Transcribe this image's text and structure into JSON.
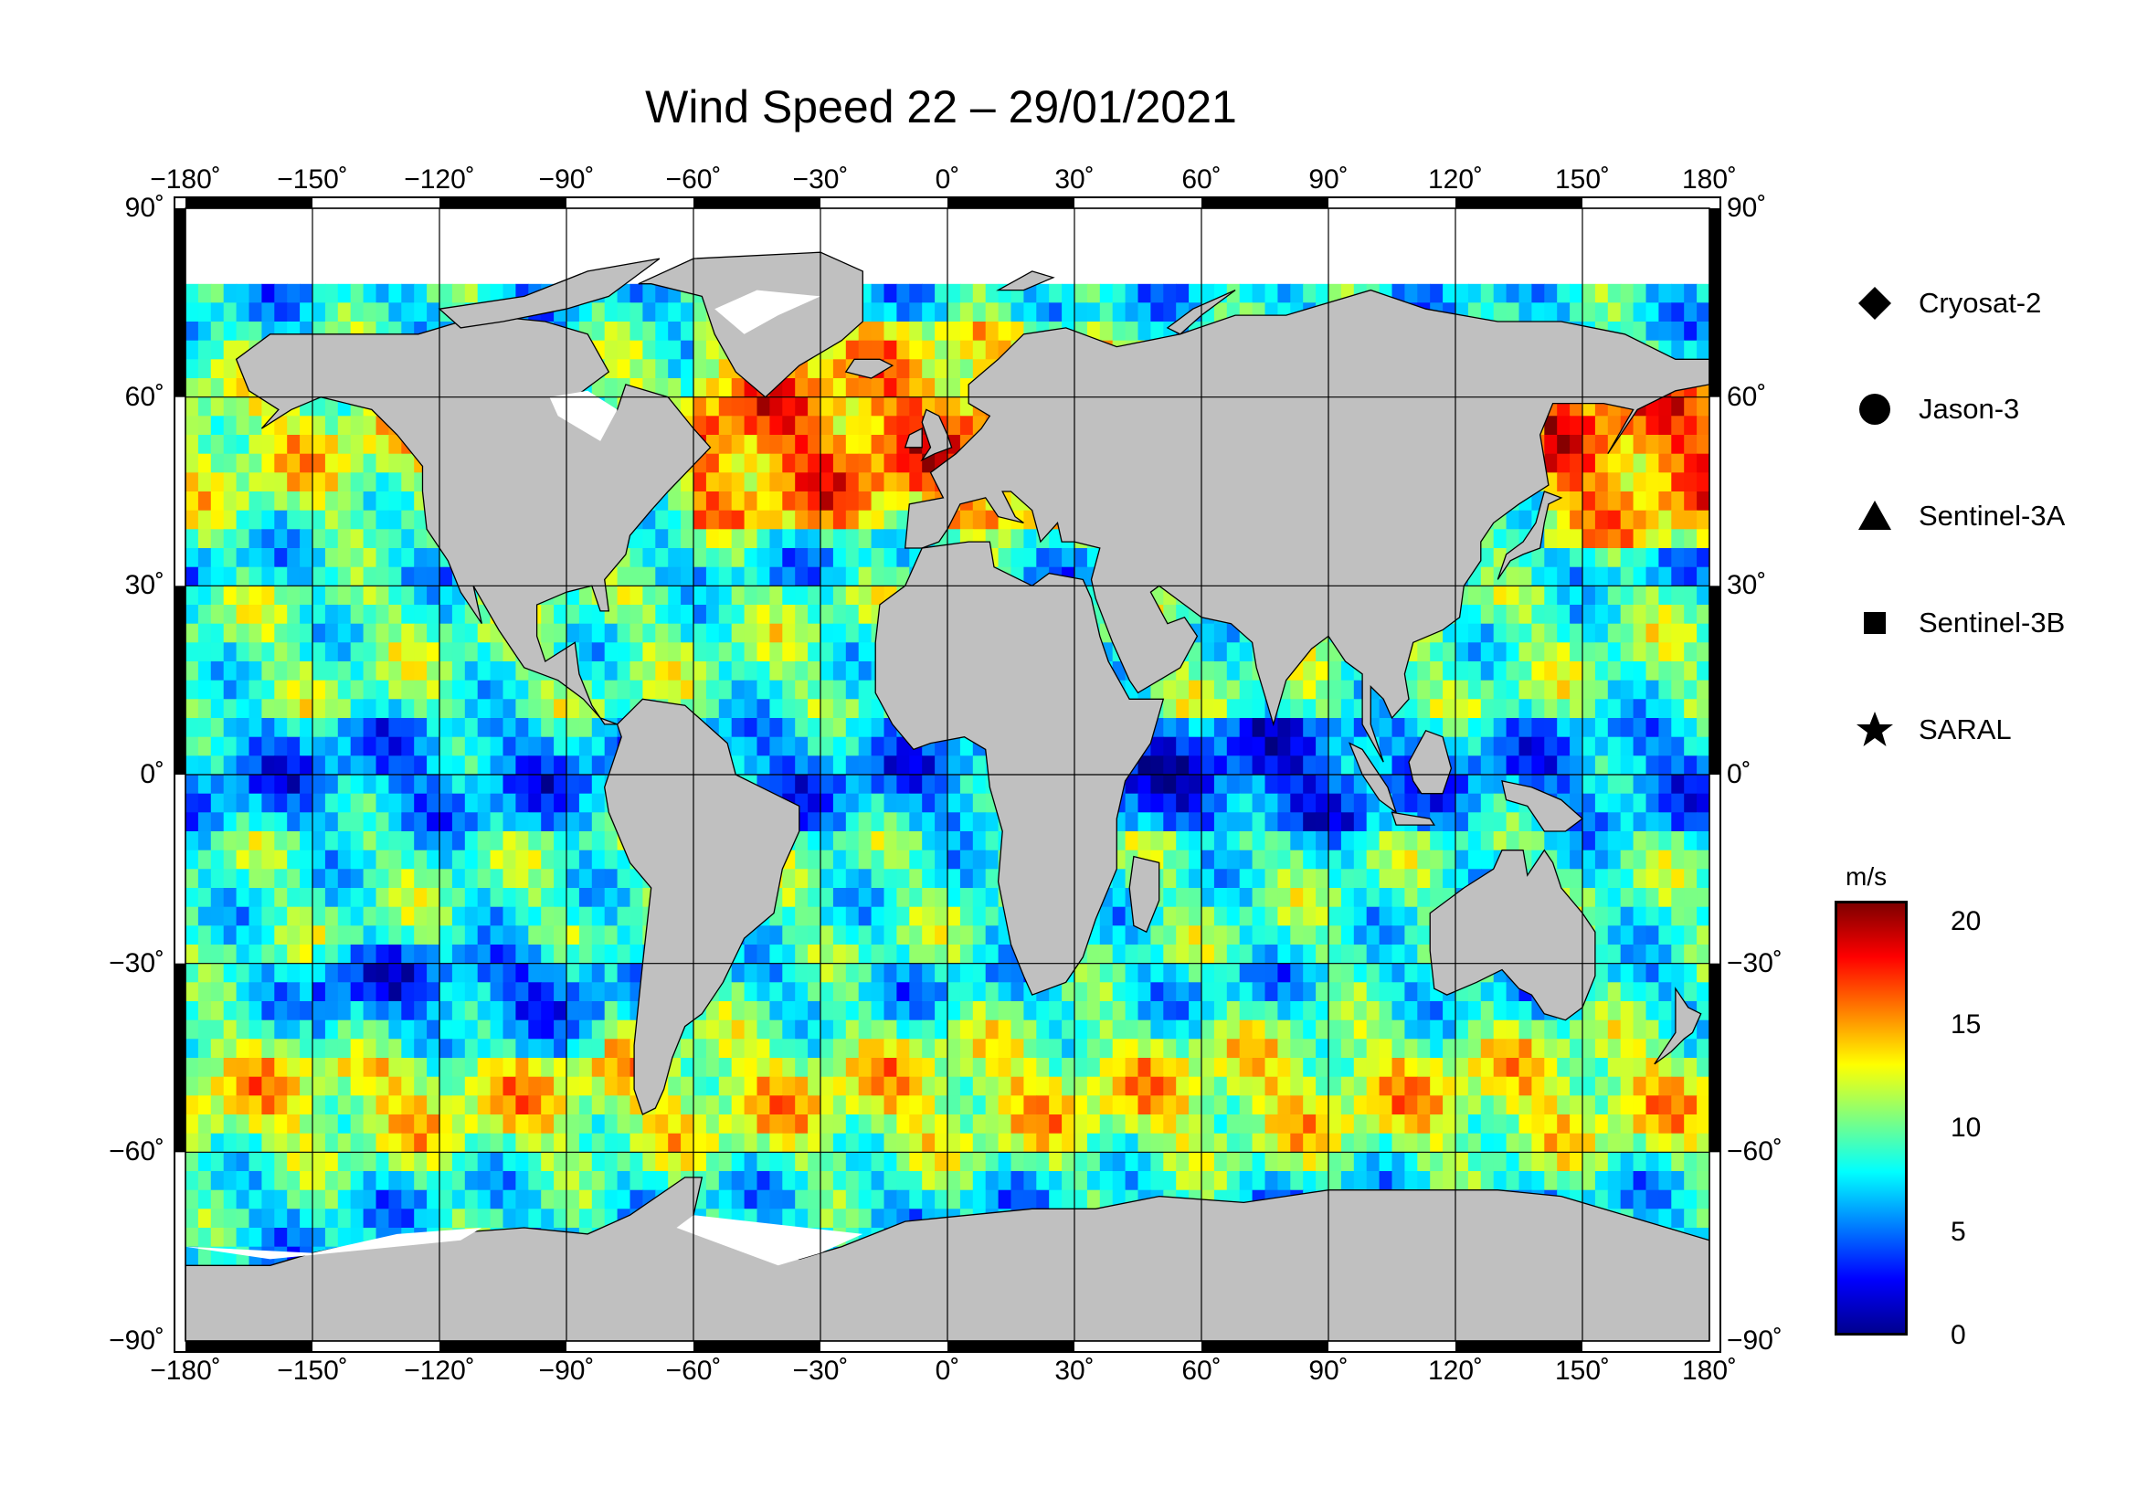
{
  "title": "Wind Speed 22 – 29/01/2021",
  "map": {
    "projection": "equirectangular",
    "lon_range": [
      -180,
      180
    ],
    "lat_range": [
      -90,
      90
    ],
    "grid_step_lon": 30,
    "grid_step_lat": 30,
    "land_color": "#c0c0c0",
    "ice_color": "#ffffff",
    "lon_tick_labels": [
      "−180˚",
      "−150˚",
      "−120˚",
      "−90˚",
      "−60˚",
      "−30˚",
      "0˚",
      "30˚",
      "60˚",
      "90˚",
      "120˚",
      "150˚",
      "180˚"
    ],
    "lat_tick_labels": [
      "90˚",
      "60˚",
      "30˚",
      "0˚",
      "−30˚",
      "−60˚",
      "−90˚"
    ]
  },
  "legend": {
    "items": [
      {
        "label": "Cryosat-2",
        "icon": "diamond-icon"
      },
      {
        "label": "Jason-3",
        "icon": "circle-icon"
      },
      {
        "label": "Sentinel-3A",
        "icon": "triangle-icon"
      },
      {
        "label": "Sentinel-3B",
        "icon": "square-icon"
      },
      {
        "label": "SARAL",
        "icon": "star-icon"
      }
    ]
  },
  "colorbar": {
    "unit": "m/s",
    "min": 0,
    "max": 21,
    "tick_labels": [
      "20",
      "15",
      "10",
      "5",
      "0"
    ],
    "tick_values": [
      20,
      15,
      10,
      5,
      0
    ],
    "colormap": "jet",
    "colors": [
      "#00008f",
      "#0000ff",
      "#007fff",
      "#00ffff",
      "#7fff7f",
      "#ffff00",
      "#ff7f00",
      "#ff0000",
      "#7f0000"
    ]
  }
}
